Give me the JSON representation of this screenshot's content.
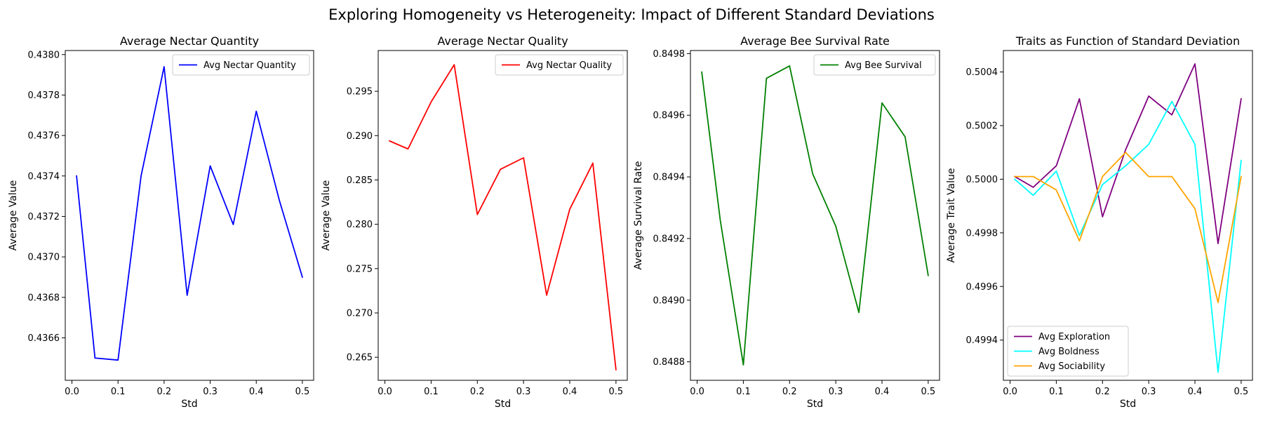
{
  "figure": {
    "suptitle": "Exploring Homogeneity vs Heterogeneity: Impact of Different Standard Deviations"
  },
  "chart_data": [
    {
      "type": "line",
      "title": "Average Nectar Quantity",
      "xlabel": "Std",
      "ylabel": "Average Value",
      "xlim": [
        -0.0145,
        0.5245
      ],
      "ylim": [
        0.43639,
        0.43802
      ],
      "xticks": [
        0.0,
        0.1,
        0.2,
        0.3,
        0.4,
        0.5
      ],
      "xtick_labels": [
        "0.0",
        "0.1",
        "0.2",
        "0.3",
        "0.4",
        "0.5"
      ],
      "yticks": [
        0.4366,
        0.4368,
        0.437,
        0.4372,
        0.4374,
        0.4376,
        0.4378,
        0.438
      ],
      "ytick_labels": [
        "0.4366",
        "0.4368",
        "0.4370",
        "0.4372",
        "0.4374",
        "0.4376",
        "0.4378",
        "0.4380"
      ],
      "legend_position": "upper right",
      "x": [
        0.01,
        0.05,
        0.1,
        0.15,
        0.2,
        0.25,
        0.3,
        0.35,
        0.4,
        0.45,
        0.5
      ],
      "series": [
        {
          "name": "Avg Nectar Quantity",
          "color": "#0000ff",
          "values": [
            0.4374,
            0.4365,
            0.43649,
            0.4374,
            0.43794,
            0.43681,
            0.43745,
            0.43716,
            0.43772,
            0.43728,
            0.4369
          ]
        }
      ]
    },
    {
      "type": "line",
      "title": "Average Nectar Quality",
      "xlabel": "Std",
      "ylabel": "Average Value",
      "xlim": [
        -0.0145,
        0.5245
      ],
      "ylim": [
        0.2624,
        0.2996
      ],
      "xticks": [
        0.0,
        0.1,
        0.2,
        0.3,
        0.4,
        0.5
      ],
      "xtick_labels": [
        "0.0",
        "0.1",
        "0.2",
        "0.3",
        "0.4",
        "0.5"
      ],
      "yticks": [
        0.265,
        0.27,
        0.275,
        0.28,
        0.285,
        0.29,
        0.295
      ],
      "ytick_labels": [
        "0.265",
        "0.270",
        "0.275",
        "0.280",
        "0.285",
        "0.290",
        "0.295"
      ],
      "legend_position": "upper right",
      "x": [
        0.01,
        0.05,
        0.1,
        0.15,
        0.2,
        0.25,
        0.3,
        0.35,
        0.4,
        0.45,
        0.5
      ],
      "series": [
        {
          "name": "Avg Nectar Quality",
          "color": "#ff0000",
          "values": [
            0.2894,
            0.2885,
            0.2938,
            0.298,
            0.2811,
            0.2862,
            0.2875,
            0.272,
            0.2817,
            0.2869,
            0.2636
          ]
        }
      ]
    },
    {
      "type": "line",
      "title": "Average Bee Survival Rate",
      "xlabel": "Std",
      "ylabel": "Average Survival Rate",
      "xlim": [
        -0.0145,
        0.5245
      ],
      "ylim": [
        0.84874,
        0.84981
      ],
      "xticks": [
        0.0,
        0.1,
        0.2,
        0.3,
        0.4,
        0.5
      ],
      "xtick_labels": [
        "0.0",
        "0.1",
        "0.2",
        "0.3",
        "0.4",
        "0.5"
      ],
      "yticks": [
        0.8488,
        0.849,
        0.8492,
        0.8494,
        0.8496,
        0.8498
      ],
      "ytick_labels": [
        "0.8488",
        "0.8490",
        "0.8492",
        "0.8494",
        "0.8496",
        "0.8498"
      ],
      "legend_position": "upper right",
      "x": [
        0.01,
        0.05,
        0.1,
        0.15,
        0.2,
        0.25,
        0.3,
        0.35,
        0.4,
        0.45,
        0.5
      ],
      "series": [
        {
          "name": "Avg Bee Survival",
          "color": "#008000",
          "values": [
            0.84974,
            0.84926,
            0.84879,
            0.84972,
            0.84976,
            0.84941,
            0.84924,
            0.84896,
            0.84964,
            0.84953,
            0.84908
          ]
        }
      ]
    },
    {
      "type": "line",
      "title": "Traits as Function of Standard Deviation",
      "xlabel": "Std",
      "ylabel": "Average Trait Value",
      "xlim": [
        -0.0145,
        0.5245
      ],
      "ylim": [
        0.49925,
        0.50048
      ],
      "xticks": [
        0.0,
        0.1,
        0.2,
        0.3,
        0.4,
        0.5
      ],
      "xtick_labels": [
        "0.0",
        "0.1",
        "0.2",
        "0.3",
        "0.4",
        "0.5"
      ],
      "yticks": [
        0.4994,
        0.4996,
        0.4998,
        0.5,
        0.5002,
        0.5004
      ],
      "ytick_labels": [
        "0.4994",
        "0.4996",
        "0.4998",
        "0.5000",
        "0.5002",
        "0.5004"
      ],
      "legend_position": "lower left",
      "x": [
        0.01,
        0.05,
        0.1,
        0.15,
        0.2,
        0.25,
        0.3,
        0.35,
        0.4,
        0.45,
        0.5
      ],
      "series": [
        {
          "name": "Avg Exploration",
          "color": "#800080",
          "values": [
            0.50001,
            0.49997,
            0.50005,
            0.5003,
            0.49986,
            0.50011,
            0.50031,
            0.50024,
            0.50043,
            0.49976,
            0.5003
          ]
        },
        {
          "name": "Avg Boldness",
          "color": "#00ffff",
          "values": [
            0.5,
            0.49994,
            0.50003,
            0.49979,
            0.49998,
            0.50005,
            0.50013,
            0.50029,
            0.50013,
            0.49928,
            0.50007
          ]
        },
        {
          "name": "Avg Sociability",
          "color": "#ffa500",
          "values": [
            0.50001,
            0.50001,
            0.49996,
            0.49977,
            0.50001,
            0.5001,
            0.50001,
            0.50001,
            0.49989,
            0.49954,
            0.50001
          ]
        }
      ]
    }
  ]
}
